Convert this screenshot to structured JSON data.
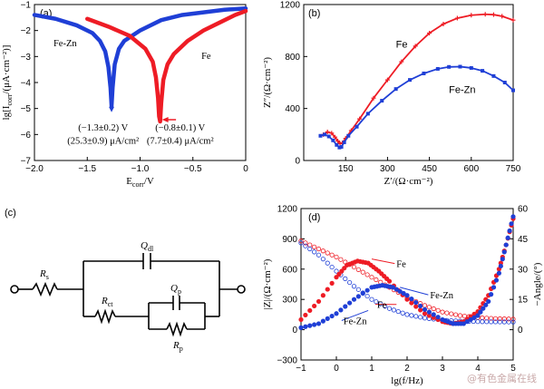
{
  "colors": {
    "fe": "#ee1c25",
    "fezn": "#1f3fd6",
    "axis": "#000000",
    "bg": "#ffffff"
  },
  "watermark": "@有色金属在线",
  "chart_data": [
    {
      "panel_label": "(a)",
      "type": "line",
      "xlabel": "E_corr/V",
      "ylabel": "lg[I_corr/(μA·cm⁻²)]",
      "xlim": [
        -2.0,
        0
      ],
      "ylim": [
        -7,
        -1
      ],
      "xticks": [
        -2.0,
        -1.5,
        -1.0,
        -0.5,
        0
      ],
      "xtick_labels": [
        "−2.0",
        "−1.5",
        "−1.0",
        "−0.5",
        "0"
      ],
      "yticks": [
        -7,
        -6,
        -5,
        -4,
        -3,
        -2,
        -1
      ],
      "ytick_labels": [
        "−7",
        "−6",
        "−5",
        "−4",
        "−3",
        "−2",
        "−1"
      ],
      "series": [
        {
          "name": "Fe-Zn",
          "color": "fezn",
          "x": [
            -2.0,
            -1.8,
            -1.6,
            -1.45,
            -1.38,
            -1.33,
            -1.3,
            -1.28,
            -1.27,
            -1.26,
            -1.24,
            -1.2,
            -1.15,
            -1.0,
            -0.8,
            -0.6,
            -0.4,
            -0.2,
            0.0
          ],
          "y": [
            -1.4,
            -1.55,
            -1.8,
            -2.1,
            -2.4,
            -2.8,
            -3.4,
            -4.2,
            -4.9,
            -4.2,
            -3.3,
            -2.7,
            -2.4,
            -2.0,
            -1.6,
            -1.4,
            -1.3,
            -1.2,
            -1.15
          ]
        },
        {
          "name": "Fe",
          "color": "fe",
          "x": [
            -1.5,
            -1.3,
            -1.1,
            -0.95,
            -0.88,
            -0.85,
            -0.83,
            -0.82,
            -0.81,
            -0.8,
            -0.78,
            -0.74,
            -0.68,
            -0.55,
            -0.4,
            -0.25,
            -0.1,
            0.0
          ],
          "y": [
            -1.55,
            -1.85,
            -2.2,
            -2.7,
            -3.2,
            -3.8,
            -4.6,
            -5.3,
            -5.5,
            -4.8,
            -3.9,
            -3.3,
            -2.9,
            -2.4,
            -2.0,
            -1.7,
            -1.4,
            -1.25
          ]
        }
      ],
      "annotations": [
        {
          "text": "Fe-Zn",
          "x": -1.82,
          "y": -2.6
        },
        {
          "text": "Fe",
          "x": -0.42,
          "y": -3.1
        },
        {
          "text": "(−1.3±0.2) V",
          "x": -1.35,
          "y": -5.85
        },
        {
          "text": "(25.3±0.9) μA/cm²",
          "x": -1.35,
          "y": -6.35
        },
        {
          "text": "(−0.8±0.1) V",
          "x": -0.62,
          "y": -5.85
        },
        {
          "text": "(7.7±0.4) μA/cm²",
          "x": -0.62,
          "y": -6.35
        }
      ]
    },
    {
      "panel_label": "(b)",
      "type": "line",
      "xlabel": "Z′/(Ω·cm⁻²)",
      "ylabel": "Z″/(Ω·cm⁻²)",
      "xlim": [
        0,
        750
      ],
      "ylim": [
        0,
        1200
      ],
      "xticks": [
        150,
        300,
        450,
        600,
        750
      ],
      "xtick_labels": [
        "150",
        "300",
        "450",
        "600",
        "750"
      ],
      "yticks": [
        0,
        400,
        800,
        1200
      ],
      "ytick_labels": [
        "0",
        "400",
        "800",
        "1200"
      ],
      "series": [
        {
          "name": "Fe",
          "color": "fe",
          "x": [
            70,
            85,
            100,
            112,
            122,
            130,
            138,
            150,
            170,
            200,
            250,
            300,
            350,
            400,
            450,
            500,
            550,
            600,
            650,
            680,
            710,
            750
          ],
          "y": [
            200,
            220,
            210,
            180,
            150,
            130,
            135,
            170,
            230,
            320,
            480,
            620,
            760,
            880,
            980,
            1050,
            1095,
            1118,
            1125,
            1122,
            1110,
            1080
          ]
        },
        {
          "name": "Fe-Zn",
          "color": "fezn",
          "x": [
            60,
            75,
            90,
            105,
            118,
            128,
            135,
            145,
            160,
            190,
            230,
            280,
            330,
            380,
            430,
            480,
            520,
            560,
            600,
            640,
            680,
            720,
            750
          ],
          "y": [
            190,
            200,
            185,
            155,
            120,
            100,
            105,
            140,
            190,
            260,
            360,
            460,
            550,
            620,
            670,
            705,
            720,
            722,
            712,
            690,
            650,
            600,
            540
          ]
        }
      ],
      "annotations": [
        {
          "text": "Fe",
          "x": 330,
          "y": 870
        },
        {
          "text": "Fe-Zn",
          "x": 520,
          "y": 520
        }
      ]
    },
    {
      "panel_label": "(c)",
      "type": "diagram",
      "labels": [
        "R_s",
        "Q_dl",
        "R_ct",
        "Q_p",
        "R_p"
      ]
    },
    {
      "panel_label": "(d)",
      "type": "scatter",
      "xlabel": "lg(f/Hz)",
      "ylabel": "|Z|/(Ω·cm⁻²)",
      "y2label": "−Angle/(°)",
      "xlim": [
        -1,
        5
      ],
      "ylim": [
        -300,
        1200
      ],
      "y2lim": [
        -15,
        60
      ],
      "xticks": [
        -1,
        0,
        1,
        2,
        3,
        4,
        5
      ],
      "xtick_labels": [
        "−1",
        "0",
        "1",
        "2",
        "3",
        "4",
        "5"
      ],
      "yticks": [
        -300,
        0,
        300,
        600,
        900,
        1200
      ],
      "ytick_labels": [
        "−300",
        "0",
        "300",
        "600",
        "900",
        "1200"
      ],
      "y2ticks": [
        0,
        15,
        30,
        45,
        60
      ],
      "y2tick_labels": [
        "0",
        "15",
        "30",
        "45",
        "60"
      ],
      "series": [
        {
          "name": "Fe |Z|",
          "color": "fe",
          "style": "hollow",
          "axis": "left",
          "x": [
            -1,
            -0.5,
            0,
            0.5,
            1,
            1.5,
            2,
            2.5,
            3,
            3.5,
            4,
            4.5,
            5
          ],
          "y": [
            880,
            800,
            720,
            620,
            520,
            420,
            320,
            240,
            175,
            140,
            120,
            110,
            105
          ]
        },
        {
          "name": "Fe-Zn |Z|",
          "color": "fezn",
          "style": "hollow",
          "axis": "left",
          "x": [
            -1,
            -0.5,
            0,
            0.5,
            1,
            1.5,
            2,
            2.5,
            3,
            3.5,
            4,
            4.5,
            5
          ],
          "y": [
            860,
            740,
            580,
            430,
            300,
            210,
            150,
            115,
            95,
            85,
            80,
            78,
            76
          ]
        },
        {
          "name": "Fe −Angle",
          "color": "fe",
          "style": "filled",
          "axis": "right",
          "x": [
            -1,
            -0.5,
            0,
            0.3,
            0.6,
            0.9,
            1.2,
            1.5,
            2,
            2.5,
            3,
            3.3,
            3.6,
            4,
            4.3,
            4.6,
            4.8,
            5
          ],
          "y": [
            5,
            14,
            26,
            32,
            34,
            33,
            29,
            24,
            15,
            8,
            4,
            3,
            4,
            9,
            17,
            30,
            42,
            55
          ]
        },
        {
          "name": "Fe-Zn −Angle",
          "color": "fezn",
          "style": "filled",
          "axis": "right",
          "x": [
            -1,
            -0.5,
            0,
            0.5,
            1,
            1.3,
            1.6,
            2,
            2.5,
            3,
            3.3,
            3.6,
            4,
            4.3,
            4.6,
            4.8,
            5
          ],
          "y": [
            1,
            3,
            8,
            15,
            21,
            22,
            21,
            17,
            10,
            5,
            3,
            3,
            7,
            14,
            28,
            42,
            56
          ]
        }
      ],
      "annotations": [
        {
          "text": "Fe",
          "x": 1.7,
          "y": 620,
          "arrow_to": [
            1.0,
            700
          ]
        },
        {
          "text": "Fe-Zn",
          "x": 2.65,
          "y": 310,
          "arrow_to": [
            1.8,
            420
          ]
        },
        {
          "text": "Fe",
          "x": 1.15,
          "y": 215,
          "arrow_to": [
            1.7,
            250
          ]
        },
        {
          "text": "Fe-Zn",
          "x": 0.2,
          "y": 55,
          "arrow_to": [
            0.9,
            190
          ]
        }
      ]
    }
  ]
}
